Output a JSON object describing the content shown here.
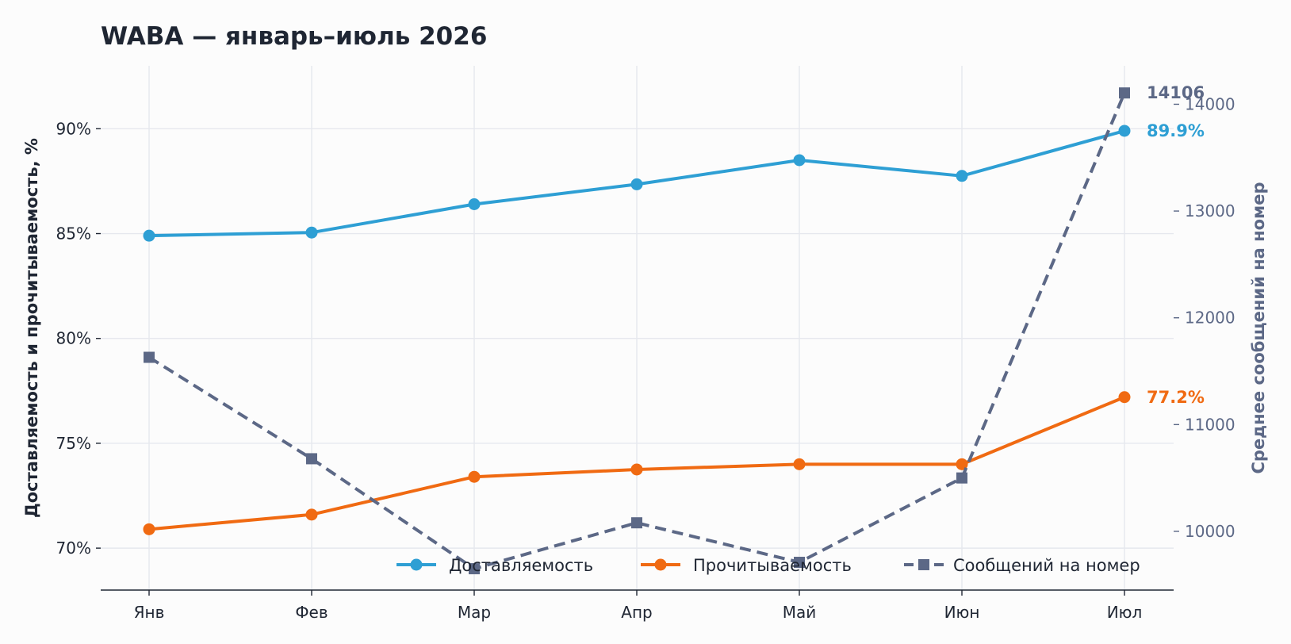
{
  "chart_data": {
    "type": "line",
    "title": "WABA — январь–июль 2026",
    "categories": [
      "Янв",
      "Фев",
      "Мар",
      "Апр",
      "Май",
      "Июн",
      "Июл"
    ],
    "y_left": {
      "label": "Доставляемость и прочитываемость, %",
      "ylim": [
        68,
        93
      ],
      "ticks": [
        70,
        75,
        80,
        85,
        90
      ],
      "tick_labels": [
        "70%",
        "75%",
        "80%",
        "85%",
        "90%"
      ]
    },
    "y_right": {
      "label": "Среднее сообщений на номер",
      "ylim": [
        9450,
        14360
      ],
      "ticks": [
        10000,
        11000,
        12000,
        13000,
        14000
      ],
      "tick_labels": [
        "10000",
        "11000",
        "12000",
        "13000",
        "14000"
      ]
    },
    "series": [
      {
        "name": "Доставляемость",
        "axis": "left",
        "color": "#2e9fd4",
        "marker": "circle",
        "style": "solid",
        "values": [
          84.9,
          85.05,
          86.4,
          87.35,
          88.5,
          87.75,
          89.9
        ],
        "end_label": "89.9%"
      },
      {
        "name": "Прочитываемость",
        "axis": "left",
        "color": "#f06a12",
        "marker": "circle",
        "style": "solid",
        "values": [
          70.9,
          71.6,
          73.4,
          73.75,
          74.0,
          74.0,
          77.2
        ],
        "end_label": "77.2%"
      },
      {
        "name": "Сообщений на номер",
        "axis": "right",
        "color": "#5c6886",
        "marker": "square",
        "style": "dashed",
        "values": [
          11630,
          10680,
          9650,
          10080,
          9710,
          10500,
          14106
        ],
        "end_label": "14106"
      }
    ],
    "grid": true,
    "legend_position": "bottom-right"
  }
}
